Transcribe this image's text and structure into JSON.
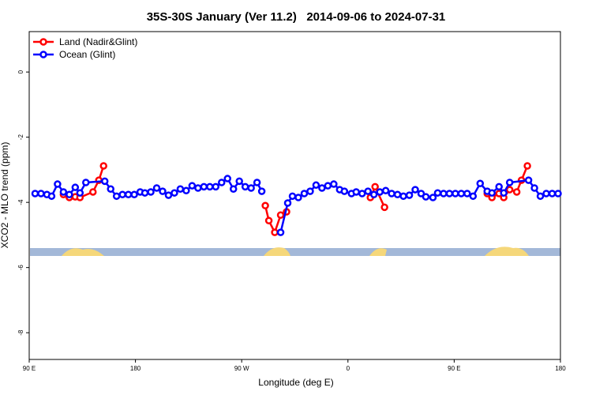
{
  "chart_data": {
    "type": "line",
    "title": "35S-30S January (Ver 11.2)   2014-09-06 to 2024-07-31",
    "xlabel": "Longitude (deg E)",
    "ylabel": "XCO2 - MLO trend (ppm)",
    "xlim": [
      90,
      540
    ],
    "ylim": [
      -8.82,
      1.24
    ],
    "xticks": [
      {
        "value": 90,
        "label": "90 E"
      },
      180,
      {
        "value": 270,
        "label": "90 W"
      },
      {
        "value": 360,
        "label": "0"
      },
      {
        "value": 450,
        "label": "90 E"
      },
      {
        "value": 540,
        "label": "180"
      }
    ],
    "yticks": [
      0,
      -2,
      -4,
      -6,
      -8
    ],
    "legend": "top-left",
    "series": [
      {
        "name": "Land (Nadir&Glint)",
        "color": "#ff0000",
        "x": [
          119,
          124,
          129,
          133,
          144,
          149,
          153,
          200,
          290,
          293,
          298,
          303,
          308,
          380,
          379,
          383,
          391,
          450,
          478,
          482,
          488,
          492,
          497,
          503,
          507,
          512
        ],
        "values": [
          -3.76,
          -3.85,
          -3.83,
          -3.85,
          -3.68,
          -3.32,
          -2.88,
          null,
          -4.1,
          -4.56,
          -4.92,
          -4.39,
          -4.29,
          null,
          -3.85,
          -3.52,
          -4.15,
          null,
          -3.73,
          -3.85,
          -3.73,
          -3.85,
          -3.61,
          -3.68,
          -3.32,
          -2.88
        ]
      },
      {
        "name": "Ocean (Glint)",
        "color": "#0000ff",
        "x": [
          95,
          100,
          105,
          109,
          114,
          119,
          124,
          129,
          133,
          138,
          154,
          159,
          164,
          169,
          174,
          179,
          184,
          188,
          193,
          198,
          203,
          208,
          213,
          218,
          223,
          228,
          233,
          238,
          243,
          248,
          253,
          258,
          263,
          268,
          273,
          278,
          283,
          287,
          295,
          303,
          309,
          313,
          318,
          323,
          328,
          333,
          338,
          343,
          348,
          353,
          357,
          363,
          367,
          372,
          377,
          382,
          387,
          392,
          397,
          402,
          407,
          412,
          417,
          422,
          426,
          432,
          436,
          441,
          446,
          451,
          456,
          461,
          466,
          472,
          478,
          482,
          488,
          492,
          497,
          513,
          518,
          523,
          528,
          533,
          538
        ],
        "values": [
          -3.73,
          -3.73,
          -3.76,
          -3.81,
          -3.44,
          -3.68,
          -3.76,
          -3.54,
          -3.71,
          -3.39,
          -3.35,
          -3.59,
          -3.81,
          -3.76,
          -3.76,
          -3.76,
          -3.68,
          -3.71,
          -3.68,
          -3.56,
          -3.66,
          -3.78,
          -3.71,
          -3.59,
          -3.64,
          -3.49,
          -3.56,
          -3.52,
          -3.52,
          -3.52,
          -3.39,
          -3.27,
          -3.59,
          -3.35,
          -3.52,
          -3.56,
          -3.39,
          -3.66,
          null,
          -4.92,
          -4.02,
          -3.81,
          -3.85,
          -3.73,
          -3.66,
          -3.47,
          -3.56,
          -3.49,
          -3.44,
          -3.61,
          -3.66,
          -3.73,
          -3.68,
          -3.73,
          -3.66,
          -3.76,
          -3.68,
          -3.64,
          -3.73,
          -3.76,
          -3.81,
          -3.78,
          -3.61,
          -3.73,
          -3.83,
          -3.85,
          -3.71,
          -3.73,
          -3.73,
          -3.73,
          -3.73,
          -3.73,
          -3.81,
          -3.42,
          -3.66,
          -3.71,
          -3.52,
          -3.71,
          -3.39,
          -3.32,
          -3.56,
          -3.81,
          -3.73,
          -3.73,
          -3.73
        ]
      }
    ]
  }
}
